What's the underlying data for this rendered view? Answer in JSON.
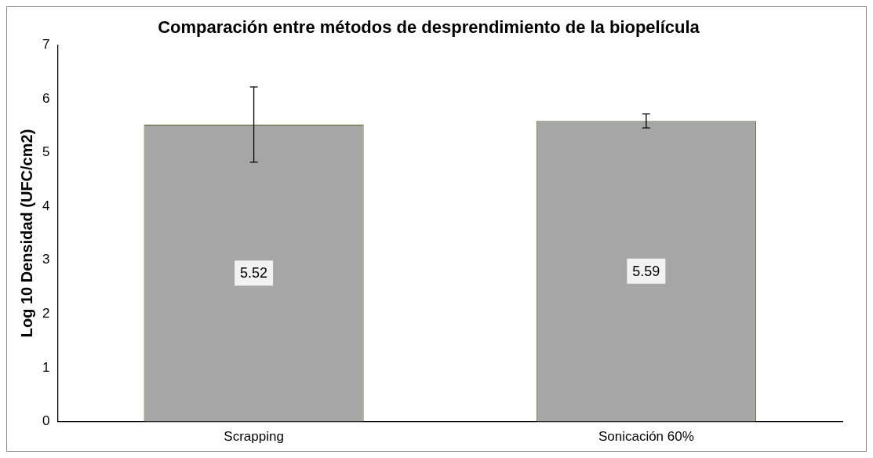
{
  "chart_data": {
    "type": "bar",
    "title": "Comparación entre métodos de desprendimiento de la biopelícula",
    "ylabel": "Log 10 Densidad (UFC/cm2)",
    "categories": [
      "Scrapping",
      "Sonicación 60%"
    ],
    "values": [
      5.52,
      5.59
    ],
    "color": "#a6a6a6",
    "errors": [
      0.7,
      0.13
    ],
    "data_labels": true,
    "ylim": [
      0,
      7
    ],
    "yticks": [
      0,
      1,
      2,
      3,
      4,
      5,
      6,
      7
    ],
    "grid": false,
    "legend": false
  }
}
